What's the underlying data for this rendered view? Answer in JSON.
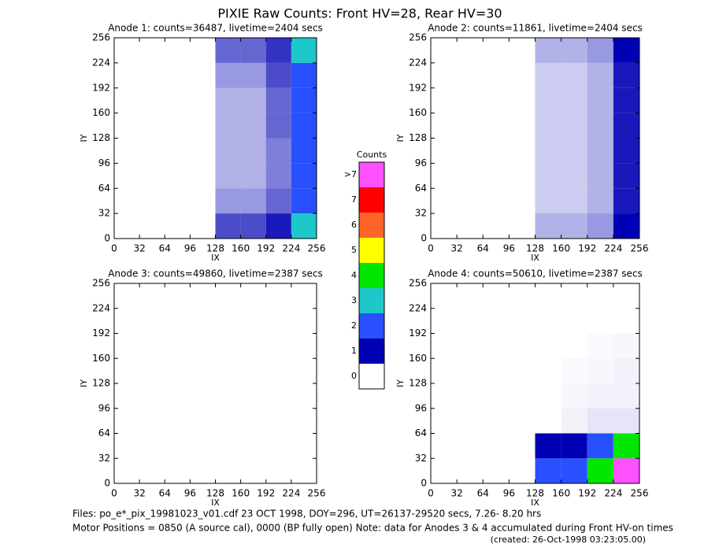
{
  "title": "PIXIE Raw Counts:  Front HV=28, Rear HV=30",
  "chart_data": [
    {
      "type": "heatmap",
      "title": "Anode 1: counts=36487, livetime=2404 secs",
      "xlabel": "IX",
      "ylabel": "IY",
      "xlim": [
        0,
        256
      ],
      "ylim": [
        0,
        256
      ],
      "xticks": [
        0,
        32,
        64,
        96,
        128,
        160,
        192,
        224,
        256
      ],
      "yticks": [
        0,
        32,
        64,
        96,
        128,
        160,
        192,
        224,
        256
      ],
      "xbins": [
        0,
        32,
        64,
        96,
        128,
        160,
        192,
        224,
        256
      ],
      "ybins": [
        0,
        32,
        64,
        96,
        128,
        160,
        192,
        224,
        256
      ],
      "values": [
        [
          0,
          0,
          0,
          0,
          0.7,
          0.7,
          0.9,
          3
        ],
        [
          0,
          0,
          0,
          0,
          0.4,
          0.4,
          0.6,
          2
        ],
        [
          0,
          0,
          0,
          0,
          0.3,
          0.3,
          0.5,
          2
        ],
        [
          0,
          0,
          0,
          0,
          0.3,
          0.3,
          0.5,
          2
        ],
        [
          0,
          0,
          0,
          0,
          0.3,
          0.3,
          0.6,
          2.5
        ],
        [
          0,
          0,
          0,
          0,
          0.3,
          0.3,
          0.6,
          2
        ],
        [
          0,
          0,
          0,
          0,
          0.4,
          0.4,
          0.7,
          2.5
        ],
        [
          0,
          0,
          0,
          0,
          0.6,
          0.6,
          0.8,
          3
        ]
      ]
    },
    {
      "type": "heatmap",
      "title": "Anode 2: counts=11861, livetime=2404 secs",
      "xlabel": "IX",
      "ylabel": "IY",
      "xlim": [
        0,
        256
      ],
      "ylim": [
        0,
        256
      ],
      "xticks": [
        0,
        32,
        64,
        96,
        128,
        160,
        192,
        224,
        256
      ],
      "yticks": [
        0,
        32,
        64,
        96,
        128,
        160,
        192,
        224,
        256
      ],
      "xbins": [
        0,
        32,
        64,
        96,
        128,
        160,
        192,
        224,
        256
      ],
      "ybins": [
        0,
        32,
        64,
        96,
        128,
        160,
        192,
        224,
        256
      ],
      "values": [
        [
          0,
          0,
          0,
          0,
          0.3,
          0.3,
          0.4,
          1
        ],
        [
          0,
          0,
          0,
          0,
          0.2,
          0.2,
          0.3,
          0.9
        ],
        [
          0,
          0,
          0,
          0,
          0.2,
          0.2,
          0.3,
          0.9
        ],
        [
          0,
          0,
          0,
          0,
          0.2,
          0.2,
          0.3,
          0.9
        ],
        [
          0,
          0,
          0,
          0,
          0.2,
          0.2,
          0.3,
          0.9
        ],
        [
          0,
          0,
          0,
          0,
          0.2,
          0.2,
          0.3,
          0.9
        ],
        [
          0,
          0,
          0,
          0,
          0.2,
          0.2,
          0.3,
          0.9
        ],
        [
          0,
          0,
          0,
          0,
          0.3,
          0.3,
          0.4,
          1
        ]
      ]
    },
    {
      "type": "heatmap",
      "title": "Anode 3: counts=49860, livetime=2387 secs",
      "xlabel": "IX",
      "ylabel": "IY",
      "xlim": [
        0,
        256
      ],
      "ylim": [
        0,
        256
      ],
      "xticks": [
        0,
        32,
        64,
        96,
        128,
        160,
        192,
        224,
        256
      ],
      "yticks": [
        0,
        32,
        64,
        96,
        128,
        160,
        192,
        224,
        256
      ],
      "xbins": [
        0,
        32,
        64,
        96,
        128,
        160,
        192,
        224,
        256
      ],
      "ybins": [
        0,
        32,
        64,
        96,
        128,
        160,
        192,
        224,
        256
      ],
      "values": [
        [
          0,
          0,
          0,
          0,
          0,
          0,
          0,
          0
        ],
        [
          0,
          0,
          0,
          0,
          0,
          0,
          0,
          0
        ],
        [
          0,
          0,
          0,
          0,
          0,
          0,
          0,
          0
        ],
        [
          0,
          0,
          0,
          0,
          0,
          0,
          0,
          0
        ],
        [
          0,
          0,
          0,
          0,
          0,
          0,
          0,
          0
        ],
        [
          0,
          0,
          0,
          0,
          0,
          0,
          0,
          0
        ],
        [
          0,
          0,
          0,
          0,
          0,
          0,
          0,
          0
        ],
        [
          0,
          0,
          0,
          0,
          0,
          0,
          0,
          0
        ]
      ]
    },
    {
      "type": "heatmap",
      "title": "Anode 4: counts=50610, livetime=2387 secs",
      "xlabel": "IX",
      "ylabel": "IY",
      "xlim": [
        0,
        256
      ],
      "ylim": [
        0,
        256
      ],
      "xticks": [
        0,
        32,
        64,
        96,
        128,
        160,
        192,
        224,
        256
      ],
      "yticks": [
        0,
        32,
        64,
        96,
        128,
        160,
        192,
        224,
        256
      ],
      "xbins": [
        0,
        32,
        64,
        96,
        128,
        160,
        192,
        224,
        256
      ],
      "ybins": [
        0,
        32,
        64,
        96,
        128,
        160,
        192,
        224,
        256
      ],
      "values": [
        [
          0,
          0,
          0,
          0,
          2,
          2,
          4,
          8
        ],
        [
          0,
          0,
          0,
          0,
          1.5,
          1.5,
          2,
          4
        ],
        [
          0,
          0,
          0,
          0,
          0,
          0.05,
          0.1,
          0.1
        ],
        [
          0,
          0,
          0,
          0,
          0,
          0.03,
          0.05,
          0.05
        ],
        [
          0,
          0,
          0,
          0,
          0,
          0.02,
          0.03,
          0.05
        ],
        [
          0,
          0,
          0,
          0,
          0,
          0,
          0.02,
          0.03
        ],
        [
          0,
          0,
          0,
          0,
          0,
          0,
          0,
          0
        ],
        [
          0,
          0,
          0,
          0,
          0,
          0,
          0,
          0
        ]
      ]
    }
  ],
  "colorbar": {
    "title": "Counts",
    "ticks": [
      0,
      1,
      2,
      3,
      4,
      5,
      6,
      7,
      {
        "value": 8,
        "label": ">7"
      }
    ],
    "colors": [
      "#ffffff",
      "#0000b4",
      "#2850ff",
      "#1ec8c8",
      "#00e600",
      "#ffff00",
      "#ff6428",
      "#ff0000",
      "#ff50ff"
    ]
  },
  "footer": [
    "Files: po_e*_pix_19981023_v01.cdf   23 OCT 1998, DOY=296, UT=26137-29520 secs,  7.26- 8.20 hrs",
    "Motor Positions = 0850 (A source cal), 0000 (BP fully open)    Note: data for Anodes 3 & 4 accumulated during Front HV-on times",
    "(created: 26-Oct-1998 03:23:05.00)"
  ]
}
